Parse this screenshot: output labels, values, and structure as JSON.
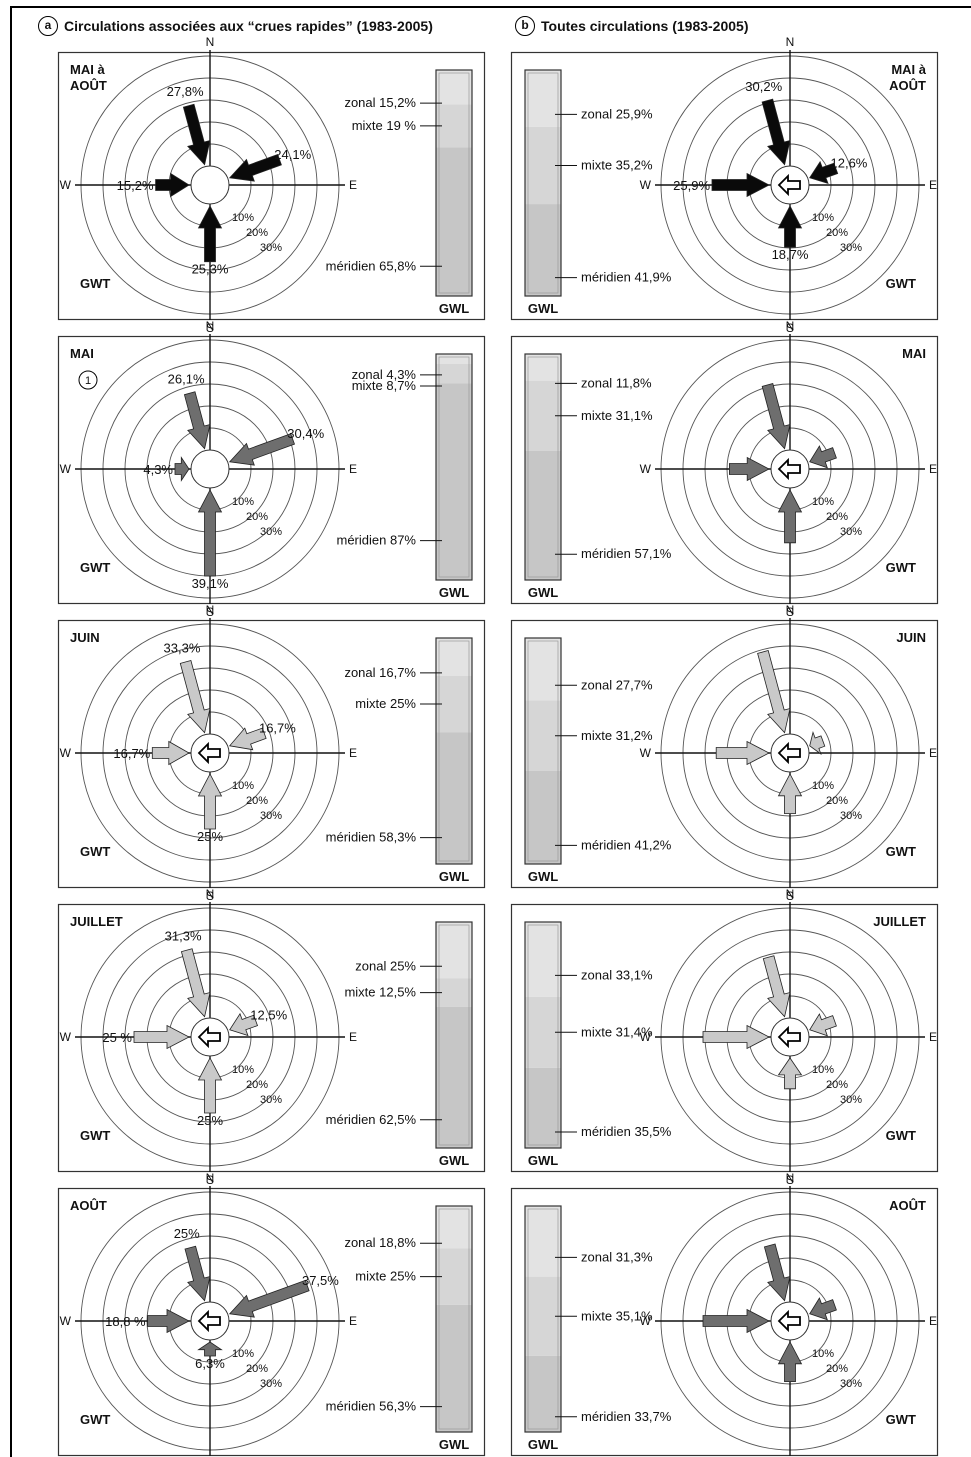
{
  "headers": {
    "a": {
      "letter": "a",
      "text": "Circulations associées aux “crues rapides” (1983-2005)"
    },
    "b": {
      "letter": "b",
      "text": "Toutes circulations (1983-2005)"
    }
  },
  "axis_labels": {
    "n": "N",
    "s": "S",
    "e": "E",
    "w": "W"
  },
  "ring_labels": [
    "10%",
    "20%",
    "30%"
  ],
  "gwt_label": "GWT",
  "gwl_label": "GWL",
  "colors": {
    "black": "#0a0a0a",
    "dark": "#6e6e6e",
    "light": "#c9c9c9",
    "bar_light": "#e3e3e3",
    "bar_mid": "#d6d6d6",
    "bar_dark": "#c6c6c6"
  },
  "chart_data": [
    {
      "type": "rose",
      "panel": "a",
      "title": "MAI à AOÛT",
      "style": "black",
      "center_arrow": false,
      "arrows": {
        "n": {
          "value": 27.8,
          "label": "27,8%"
        },
        "e": {
          "value": 24.1,
          "label": "24,1%"
        },
        "s": {
          "value": 25.3,
          "label": "25,3%"
        },
        "w": {
          "value": 15.2,
          "label": "15,2%"
        }
      },
      "gwl": {
        "zonal": {
          "value": 15.2,
          "label": "zonal 15,2%"
        },
        "mixte": {
          "value": 19,
          "label": "mixte 19 %"
        },
        "meridien": {
          "value": 65.8,
          "label": "méridien 65,8%"
        }
      }
    },
    {
      "type": "rose",
      "panel": "b",
      "title": "MAI à AOÛT",
      "style": "black",
      "center_arrow": true,
      "arrows": {
        "n": {
          "value": 30.2,
          "label": "30,2%"
        },
        "e": {
          "value": 12.6,
          "label": "12,6%"
        },
        "s": {
          "value": 18.7,
          "label": "18,7%"
        },
        "w": {
          "value": 25.9,
          "label": "25,9%"
        }
      },
      "gwl": {
        "zonal": {
          "value": 25.9,
          "label": "zonal 25,9%"
        },
        "mixte": {
          "value": 35.2,
          "label": "mixte 35,2%"
        },
        "meridien": {
          "value": 41.9,
          "label": "méridien 41,9%"
        }
      }
    },
    {
      "type": "rose",
      "panel": "a",
      "title": "MAI",
      "note": "1",
      "style": "dark",
      "center_arrow": false,
      "arrows": {
        "n": {
          "value": 26.1,
          "label": "26,1%"
        },
        "e": {
          "value": 30.4,
          "label": "30,4%"
        },
        "s": {
          "value": 39.1,
          "label": "39,1%"
        },
        "w": {
          "value": 4.3,
          "label": "4,3%"
        }
      },
      "gwl": {
        "zonal": {
          "value": 4.3,
          "label": "zonal 4,3%"
        },
        "mixte": {
          "value": 8.7,
          "label": "mixte 8,7%"
        },
        "meridien": {
          "value": 87,
          "label": "méridien 87%"
        }
      }
    },
    {
      "type": "rose",
      "panel": "b",
      "title": "MAI",
      "style": "dark",
      "center_arrow": true,
      "arrows": {
        "n": {
          "value": 30,
          "label": ""
        },
        "e": {
          "value": 12,
          "label": ""
        },
        "s": {
          "value": 24,
          "label": ""
        },
        "w": {
          "value": 18,
          "label": ""
        }
      },
      "gwl": {
        "zonal": {
          "value": 11.8,
          "label": "zonal 11,8%"
        },
        "mixte": {
          "value": 31.1,
          "label": "mixte 31,1%"
        },
        "meridien": {
          "value": 57.1,
          "label": "méridien 57,1%"
        }
      }
    },
    {
      "type": "rose",
      "panel": "a",
      "title": "JUIN",
      "style": "light",
      "center_arrow": true,
      "arrows": {
        "n": {
          "value": 33.3,
          "label": "33,3%"
        },
        "e": {
          "value": 16.7,
          "label": "16,7%"
        },
        "s": {
          "value": 25,
          "label": "25%"
        },
        "w": {
          "value": 16.7,
          "label": "16,7%"
        }
      },
      "gwl": {
        "zonal": {
          "value": 16.7,
          "label": "zonal 16,7%"
        },
        "mixte": {
          "value": 25,
          "label": "mixte 25%"
        },
        "meridien": {
          "value": 58.3,
          "label": "méridien 58,3%"
        }
      }
    },
    {
      "type": "rose",
      "panel": "b",
      "title": "JUIN",
      "style": "light",
      "center_arrow": true,
      "arrows": {
        "n": {
          "value": 38,
          "label": ""
        },
        "e": {
          "value": 6,
          "label": ""
        },
        "s": {
          "value": 18,
          "label": ""
        },
        "w": {
          "value": 24,
          "label": ""
        }
      },
      "gwl": {
        "zonal": {
          "value": 27.7,
          "label": "zonal 27,7%"
        },
        "mixte": {
          "value": 31.2,
          "label": "mixte 31,2%"
        },
        "meridien": {
          "value": 41.2,
          "label": "méridien 41,2%"
        }
      }
    },
    {
      "type": "rose",
      "panel": "a",
      "title": "JUILLET",
      "style": "light",
      "center_arrow": true,
      "arrows": {
        "n": {
          "value": 31.3,
          "label": "31,3%"
        },
        "e": {
          "value": 12.5,
          "label": "12,5%"
        },
        "s": {
          "value": 25,
          "label": "25%"
        },
        "w": {
          "value": 25,
          "label": "25 %"
        }
      },
      "gwl": {
        "zonal": {
          "value": 25,
          "label": "zonal 25%"
        },
        "mixte": {
          "value": 12.5,
          "label": "mixte 12,5%"
        },
        "meridien": {
          "value": 62.5,
          "label": "méridien 62,5%"
        }
      }
    },
    {
      "type": "rose",
      "panel": "b",
      "title": "JUILLET",
      "style": "light",
      "center_arrow": true,
      "arrows": {
        "n": {
          "value": 28,
          "label": ""
        },
        "e": {
          "value": 12,
          "label": ""
        },
        "s": {
          "value": 14,
          "label": ""
        },
        "w": {
          "value": 30,
          "label": ""
        }
      },
      "gwl": {
        "zonal": {
          "value": 33.1,
          "label": "zonal 33,1%"
        },
        "mixte": {
          "value": 31.4,
          "label": "mixte 31,4%"
        },
        "meridien": {
          "value": 35.5,
          "label": "méridien 35,5%"
        }
      }
    },
    {
      "type": "rose",
      "panel": "a",
      "title": "AOÛT",
      "style": "dark",
      "center_arrow": true,
      "arrows": {
        "n": {
          "value": 25,
          "label": "25%"
        },
        "e": {
          "value": 37.5,
          "label": "37,5%"
        },
        "s": {
          "value": 6.3,
          "label": "6,3%"
        },
        "w": {
          "value": 18.8,
          "label": "18,8 %"
        }
      },
      "gwl": {
        "zonal": {
          "value": 18.8,
          "label": "zonal 18,8%"
        },
        "mixte": {
          "value": 25,
          "label": "mixte 25%"
        },
        "meridien": {
          "value": 56.3,
          "label": "méridien 56,3%"
        }
      }
    },
    {
      "type": "rose",
      "panel": "b",
      "title": "AOÛT",
      "style": "dark",
      "center_arrow": true,
      "arrows": {
        "n": {
          "value": 26,
          "label": ""
        },
        "e": {
          "value": 12,
          "label": ""
        },
        "s": {
          "value": 18,
          "label": ""
        },
        "w": {
          "value": 30,
          "label": ""
        }
      },
      "gwl": {
        "zonal": {
          "value": 31.3,
          "label": "zonal 31,3%"
        },
        "mixte": {
          "value": 35.1,
          "label": "mixte 35,1%"
        },
        "meridien": {
          "value": 33.7,
          "label": "méridien 33,7%"
        }
      }
    }
  ]
}
